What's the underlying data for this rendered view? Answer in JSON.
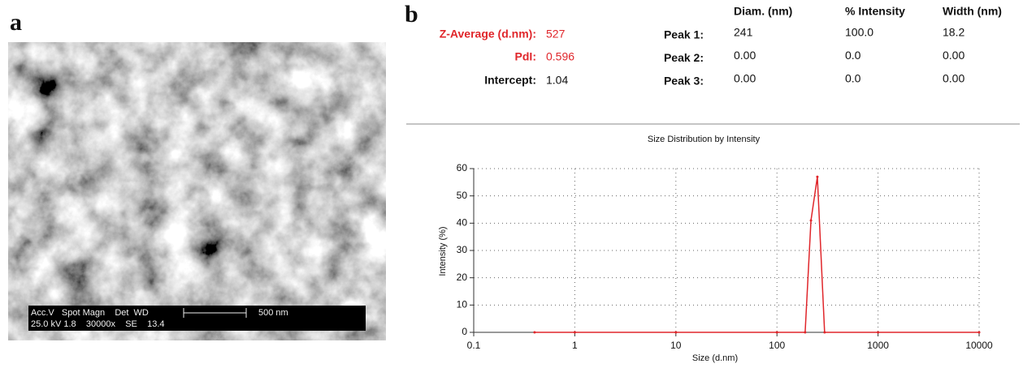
{
  "panels": {
    "a": "a",
    "b": "b"
  },
  "sem": {
    "line1": "Acc.V   Spot Magn    Det  WD",
    "line2": "25.0 kV 1.8    30000x    SE    13.4",
    "scale": "500 nm"
  },
  "summary": {
    "rows": [
      [
        "Z-Average (d.nm):",
        "527"
      ],
      [
        "PdI:",
        "0.596"
      ],
      [
        "Intercept:",
        "1.04"
      ]
    ]
  },
  "peaks": {
    "header": [
      "Diam. (nm)",
      "% Intensity",
      "Width (nm)"
    ],
    "rows": [
      [
        "Peak 1:",
        "241",
        "100.0",
        "18.2"
      ],
      [
        "Peak 2:",
        "0.00",
        "0.0",
        "0.00"
      ],
      [
        "Peak 3:",
        "0.00",
        "0.0",
        "0.00"
      ]
    ]
  },
  "chart_data": {
    "type": "line",
    "title": "Size Distribution by Intensity",
    "x_label": "Size (d.nm)",
    "y_label": "Intensity (%)",
    "x": [
      0.4,
      1,
      10,
      100,
      190,
      217,
      251,
      296,
      1000,
      10000
    ],
    "values": [
      0,
      0,
      0,
      0,
      0,
      41,
      57,
      0,
      0,
      0
    ],
    "color": "#e0262b",
    "xscale": "log",
    "xlim": [
      0.1,
      10000
    ],
    "xticks": [
      0.1,
      1,
      10,
      100,
      1000,
      10000
    ],
    "ylim": [
      0,
      60
    ],
    "yticks": [
      0,
      10,
      20,
      30,
      40,
      50,
      60
    ],
    "grid": true
  }
}
